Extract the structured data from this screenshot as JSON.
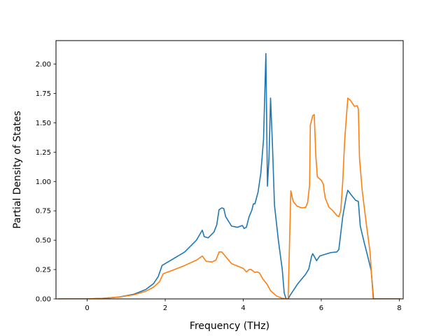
{
  "chart_data": {
    "type": "line",
    "title": "",
    "xlabel": "Frequency (THz)",
    "ylabel": "Partial Density of States",
    "xlim": [
      -0.8,
      8.1
    ],
    "ylim": [
      0,
      2.2
    ],
    "xticks": [
      0,
      2,
      4,
      6,
      8
    ],
    "xtick_labels": [
      "0",
      "2",
      "4",
      "6",
      "8"
    ],
    "yticks": [
      0,
      0.25,
      0.5,
      0.75,
      1.0,
      1.25,
      1.5,
      1.75,
      2.0
    ],
    "ytick_labels": [
      "0.00",
      "0.25",
      "0.50",
      "0.75",
      "1.00",
      "1.25",
      "1.50",
      "1.75",
      "2.00"
    ],
    "grid": false,
    "legend": "none",
    "series": [
      {
        "color": "#1f77b4",
        "points": [
          [
            -0.75,
            0.0
          ],
          [
            0.0,
            0.0
          ],
          [
            0.4,
            0.005
          ],
          [
            0.8,
            0.015
          ],
          [
            1.2,
            0.04
          ],
          [
            1.5,
            0.08
          ],
          [
            1.7,
            0.13
          ],
          [
            1.82,
            0.19
          ],
          [
            1.92,
            0.285
          ],
          [
            2.2,
            0.34
          ],
          [
            2.5,
            0.4
          ],
          [
            2.8,
            0.5
          ],
          [
            2.95,
            0.585
          ],
          [
            3.0,
            0.53
          ],
          [
            3.1,
            0.52
          ],
          [
            3.25,
            0.57
          ],
          [
            3.32,
            0.63
          ],
          [
            3.38,
            0.76
          ],
          [
            3.45,
            0.775
          ],
          [
            3.5,
            0.77
          ],
          [
            3.55,
            0.7
          ],
          [
            3.7,
            0.62
          ],
          [
            3.85,
            0.61
          ],
          [
            3.98,
            0.625
          ],
          [
            4.02,
            0.6
          ],
          [
            4.08,
            0.61
          ],
          [
            4.15,
            0.7
          ],
          [
            4.22,
            0.755
          ],
          [
            4.26,
            0.81
          ],
          [
            4.3,
            0.81
          ],
          [
            4.38,
            0.91
          ],
          [
            4.45,
            1.07
          ],
          [
            4.52,
            1.36
          ],
          [
            4.58,
            2.09
          ],
          [
            4.62,
            0.96
          ],
          [
            4.66,
            1.2
          ],
          [
            4.7,
            1.71
          ],
          [
            4.75,
            1.3
          ],
          [
            4.8,
            0.8
          ],
          [
            4.9,
            0.5
          ],
          [
            5.0,
            0.25
          ],
          [
            5.05,
            0.05
          ],
          [
            5.1,
            0.0
          ],
          [
            5.15,
            0.0
          ],
          [
            5.2,
            0.03
          ],
          [
            5.4,
            0.13
          ],
          [
            5.6,
            0.21
          ],
          [
            5.68,
            0.255
          ],
          [
            5.75,
            0.36
          ],
          [
            5.78,
            0.385
          ],
          [
            5.84,
            0.35
          ],
          [
            5.88,
            0.325
          ],
          [
            5.96,
            0.365
          ],
          [
            6.1,
            0.38
          ],
          [
            6.25,
            0.395
          ],
          [
            6.4,
            0.4
          ],
          [
            6.45,
            0.42
          ],
          [
            6.55,
            0.7
          ],
          [
            6.64,
            0.87
          ],
          [
            6.68,
            0.925
          ],
          [
            6.78,
            0.88
          ],
          [
            6.88,
            0.84
          ],
          [
            6.95,
            0.83
          ],
          [
            7.0,
            0.62
          ],
          [
            7.1,
            0.48
          ],
          [
            7.2,
            0.35
          ],
          [
            7.28,
            0.24
          ],
          [
            7.34,
            0.0
          ],
          [
            7.6,
            0.0
          ],
          [
            8.05,
            0.0
          ]
        ]
      },
      {
        "color": "#ff7f0e",
        "points": [
          [
            -0.75,
            0.0
          ],
          [
            0.0,
            0.0
          ],
          [
            0.4,
            0.005
          ],
          [
            0.8,
            0.015
          ],
          [
            1.2,
            0.035
          ],
          [
            1.5,
            0.065
          ],
          [
            1.7,
            0.1
          ],
          [
            1.85,
            0.145
          ],
          [
            1.95,
            0.215
          ],
          [
            2.2,
            0.245
          ],
          [
            2.5,
            0.285
          ],
          [
            2.8,
            0.33
          ],
          [
            2.95,
            0.365
          ],
          [
            3.05,
            0.32
          ],
          [
            3.2,
            0.315
          ],
          [
            3.3,
            0.33
          ],
          [
            3.38,
            0.4
          ],
          [
            3.45,
            0.4
          ],
          [
            3.55,
            0.36
          ],
          [
            3.7,
            0.3
          ],
          [
            3.85,
            0.28
          ],
          [
            4.0,
            0.26
          ],
          [
            4.08,
            0.23
          ],
          [
            4.15,
            0.25
          ],
          [
            4.2,
            0.25
          ],
          [
            4.3,
            0.225
          ],
          [
            4.35,
            0.23
          ],
          [
            4.42,
            0.22
          ],
          [
            4.5,
            0.17
          ],
          [
            4.6,
            0.13
          ],
          [
            4.7,
            0.07
          ],
          [
            4.85,
            0.025
          ],
          [
            5.0,
            0.005
          ],
          [
            5.15,
            0.0
          ],
          [
            5.22,
            0.92
          ],
          [
            5.28,
            0.83
          ],
          [
            5.38,
            0.79
          ],
          [
            5.5,
            0.775
          ],
          [
            5.6,
            0.78
          ],
          [
            5.65,
            0.82
          ],
          [
            5.7,
            0.97
          ],
          [
            5.72,
            1.48
          ],
          [
            5.78,
            1.56
          ],
          [
            5.82,
            1.57
          ],
          [
            5.86,
            1.22
          ],
          [
            5.9,
            1.04
          ],
          [
            6.0,
            1.01
          ],
          [
            6.05,
            0.98
          ],
          [
            6.1,
            0.86
          ],
          [
            6.2,
            0.78
          ],
          [
            6.3,
            0.75
          ],
          [
            6.4,
            0.71
          ],
          [
            6.45,
            0.7
          ],
          [
            6.5,
            0.75
          ],
          [
            6.55,
            1.0
          ],
          [
            6.6,
            1.35
          ],
          [
            6.68,
            1.71
          ],
          [
            6.75,
            1.69
          ],
          [
            6.85,
            1.64
          ],
          [
            6.92,
            1.645
          ],
          [
            6.95,
            1.62
          ],
          [
            6.98,
            1.2
          ],
          [
            7.05,
            0.92
          ],
          [
            7.15,
            0.65
          ],
          [
            7.25,
            0.4
          ],
          [
            7.33,
            0.0
          ],
          [
            7.6,
            0.0
          ],
          [
            8.05,
            0.0
          ]
        ]
      }
    ]
  }
}
